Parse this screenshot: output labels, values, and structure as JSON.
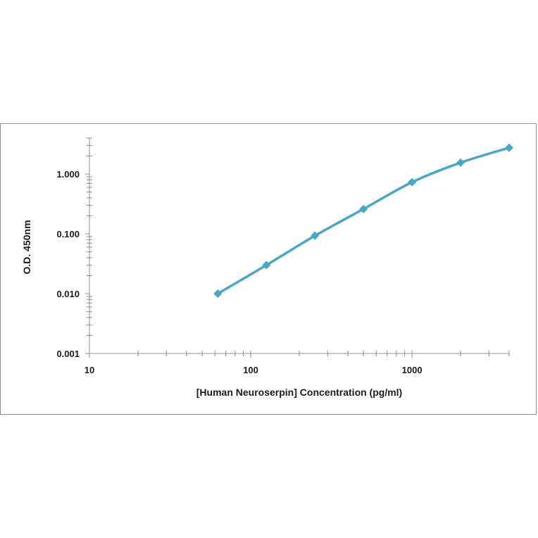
{
  "chart_data": {
    "type": "line",
    "title": "",
    "xlabel": "[Human Neuroserpin] Concentration (pg/ml)",
    "ylabel": "O.D. 450nm",
    "x_scale": "log",
    "y_scale": "log",
    "xlim": [
      10,
      4000
    ],
    "ylim": [
      0.001,
      4
    ],
    "x_ticks": [
      10,
      100,
      1000
    ],
    "x_tick_labels": [
      "10",
      "100",
      "1000"
    ],
    "y_ticks": [
      0.001,
      0.01,
      0.1,
      1
    ],
    "y_tick_labels": [
      "0.001",
      "0.010",
      "0.100",
      "1.000"
    ],
    "grid": false,
    "legend": "none",
    "series": [
      {
        "color": "#4aa6c4",
        "marker": "diamond",
        "x": [
          62.5,
          125,
          250,
          500,
          1000,
          2000,
          4000
        ],
        "y": [
          0.01,
          0.03,
          0.093,
          0.26,
          0.73,
          1.55,
          2.75
        ]
      }
    ]
  }
}
